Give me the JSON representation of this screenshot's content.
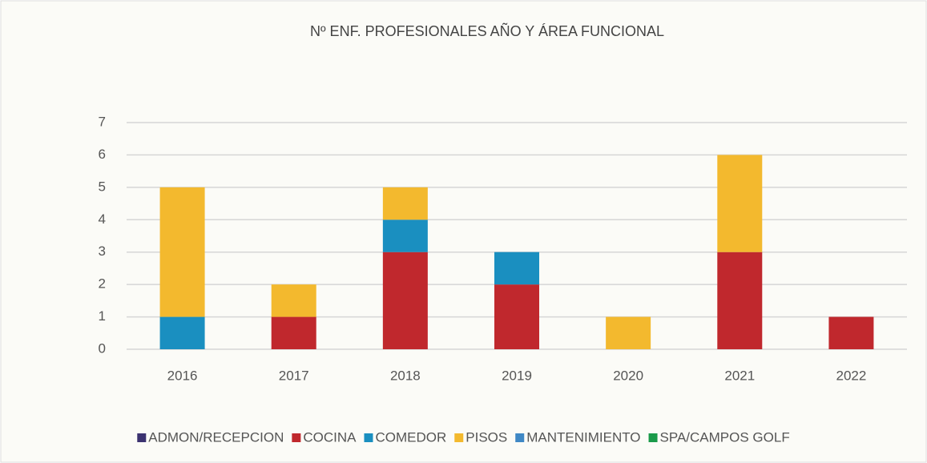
{
  "chart_data": {
    "type": "stacked_bar",
    "title": "Nº ENF. PROFESIONALES AÑO Y ÁREA FUNCIONAL",
    "categories": [
      "2016",
      "2017",
      "2018",
      "2019",
      "2020",
      "2021",
      "2022"
    ],
    "series": [
      {
        "name": "ADMON/RECEPCION",
        "color": "#3b3270",
        "values": [
          0,
          0,
          0,
          0,
          0,
          0,
          0
        ]
      },
      {
        "name": "COCINA",
        "color": "#c0282d",
        "values": [
          0,
          1,
          3,
          2,
          0,
          3,
          1
        ]
      },
      {
        "name": "COMEDOR",
        "color": "#1a8fc0",
        "values": [
          1,
          0,
          1,
          1,
          0,
          0,
          0
        ]
      },
      {
        "name": "PISOS",
        "color": "#f3b92e",
        "values": [
          4,
          1,
          1,
          0,
          1,
          3,
          0
        ]
      },
      {
        "name": "MANTENIMIENTO",
        "color": "#3f88c5",
        "values": [
          0,
          0,
          0,
          0,
          0,
          0,
          0
        ]
      },
      {
        "name": "SPA/CAMPOS GOLF",
        "color": "#1a9a4a",
        "values": [
          0,
          0,
          0,
          0,
          0,
          0,
          0
        ]
      }
    ],
    "ylim": [
      0,
      7
    ],
    "yticks": [
      0,
      1,
      2,
      3,
      4,
      5,
      6,
      7
    ],
    "grid": true,
    "legend": "bottom"
  }
}
